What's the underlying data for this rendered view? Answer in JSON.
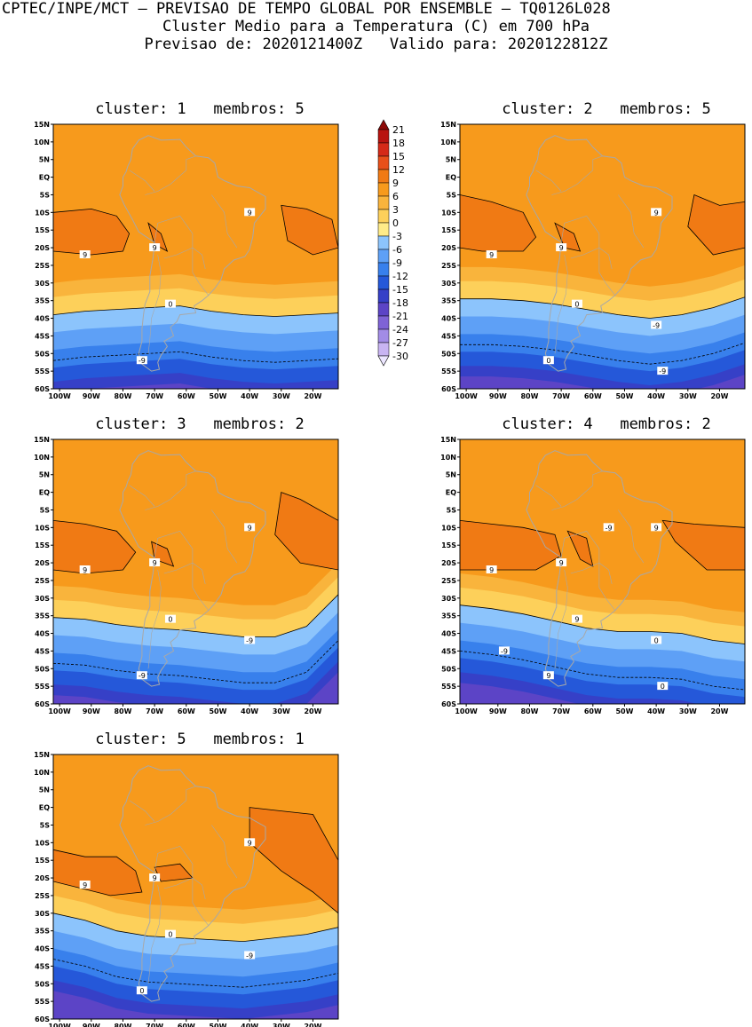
{
  "header": {
    "line1": "CPTEC/INPE/MCT – PREVISAO DE TEMPO GLOBAL POR ENSEMBLE – TQ0126L028",
    "line2": "Cluster Medio para a Temperatura (C) em 700 hPa",
    "line3": "Previsao de: 2020121400Z   Valido para: 2020122812Z"
  },
  "colors": {
    "scale": [
      "#ece6ff",
      "#c8b4f2",
      "#a28ce6",
      "#7f63d6",
      "#5c44c6",
      "#3640c7",
      "#2558d9",
      "#3880ec",
      "#5ea0f6",
      "#8cc4fc",
      "#ffeb88",
      "#fdd05a",
      "#f9b43c",
      "#f79a1c",
      "#f07a14",
      "#e8501a",
      "#d52a18",
      "#b81410",
      "#8e0a08"
    ],
    "contour": "#000000",
    "coast": "#a8a8a8"
  },
  "colorbar": {
    "labels": [
      "21",
      "18",
      "15",
      "12",
      "9",
      "6",
      "3",
      "0",
      "-3",
      "-6",
      "-9",
      "-12",
      "-15",
      "-18",
      "-21",
      "-24",
      "-27",
      "-30"
    ]
  },
  "axes": {
    "lat_ticks": [
      "15N",
      "10N",
      "5N",
      "EQ",
      "5S",
      "10S",
      "15S",
      "20S",
      "25S",
      "30S",
      "35S",
      "40S",
      "45S",
      "50S",
      "55S",
      "60S"
    ],
    "lon_ticks": [
      "100W",
      "90W",
      "80W",
      "70W",
      "60W",
      "50W",
      "40W",
      "30W",
      "20W"
    ]
  },
  "chart_data": [
    {
      "type": "heatmap",
      "title": "cluster: 1   membros: 5",
      "cluster": "1",
      "membros": "5",
      "contour_labels": [
        "9",
        "9",
        "9",
        "0",
        "-9"
      ],
      "zero_lat": [
        -39,
        -38,
        -37.5,
        -37,
        -36.5,
        -38,
        -39,
        -39.5,
        -39,
        -38.5
      ]
    },
    {
      "type": "heatmap",
      "title": "cluster: 2   membros: 5",
      "cluster": "2",
      "membros": "5",
      "contour_labels": [
        "9",
        "9",
        "9",
        "0",
        "0",
        "-9",
        "-9"
      ],
      "zero_lat": [
        -34.5,
        -34.5,
        -35,
        -36,
        -37.5,
        -39,
        -40,
        -39,
        -37,
        -34
      ]
    },
    {
      "type": "heatmap",
      "title": "cluster: 3   membros: 2",
      "cluster": "3",
      "membros": "2",
      "contour_labels": [
        "9",
        "9",
        "9",
        "0",
        "-9",
        "-9"
      ],
      "zero_lat": [
        -35.5,
        -36,
        -37.5,
        -38.5,
        -39,
        -40,
        -41,
        -41,
        -38,
        -29
      ]
    },
    {
      "type": "heatmap",
      "title": "cluster: 4   membros: 2",
      "cluster": "4",
      "membros": "2",
      "contour_labels": [
        "9",
        "9",
        "9",
        "9",
        "9",
        "0",
        "0",
        "-9",
        "-9"
      ],
      "zero_lat": [
        -32,
        -33,
        -34.5,
        -36.5,
        -38.5,
        -39.5,
        -39.5,
        -40,
        -42,
        -43
      ]
    },
    {
      "type": "heatmap",
      "title": "cluster: 5   membros: 1",
      "cluster": "5",
      "membros": "1",
      "contour_labels": [
        "9",
        "9",
        "9",
        "0",
        "0",
        "-9"
      ],
      "zero_lat": [
        -30,
        -32,
        -35,
        -36.5,
        -37,
        -37.5,
        -38,
        -37,
        -36,
        -34
      ]
    }
  ]
}
